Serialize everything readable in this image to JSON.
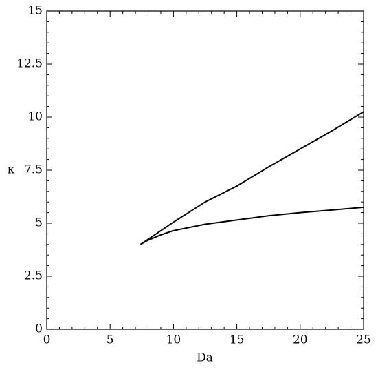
{
  "chart_data": {
    "type": "line",
    "x_label": "Da",
    "y_label": "κ",
    "xlim": [
      0,
      25
    ],
    "ylim": [
      0,
      15
    ],
    "xticks": [
      0,
      5,
      10,
      15,
      20,
      25
    ],
    "yticks": [
      0,
      2.5,
      5,
      7.5,
      10,
      12.5,
      15
    ],
    "grid": false,
    "series": [
      {
        "color": "#000000",
        "x": [
          7.4,
          10,
          12.5,
          15,
          17.5,
          20,
          22.5,
          25
        ],
        "values": [
          4.0,
          5.05,
          6.0,
          6.75,
          7.65,
          8.5,
          9.35,
          10.25
        ]
      },
      {
        "color": "#000000",
        "x": [
          7.4,
          8,
          9,
          10,
          12.5,
          15,
          17.5,
          20,
          22.5,
          25
        ],
        "values": [
          4.0,
          4.2,
          4.45,
          4.65,
          4.95,
          5.15,
          5.35,
          5.5,
          5.62,
          5.75
        ]
      }
    ]
  }
}
